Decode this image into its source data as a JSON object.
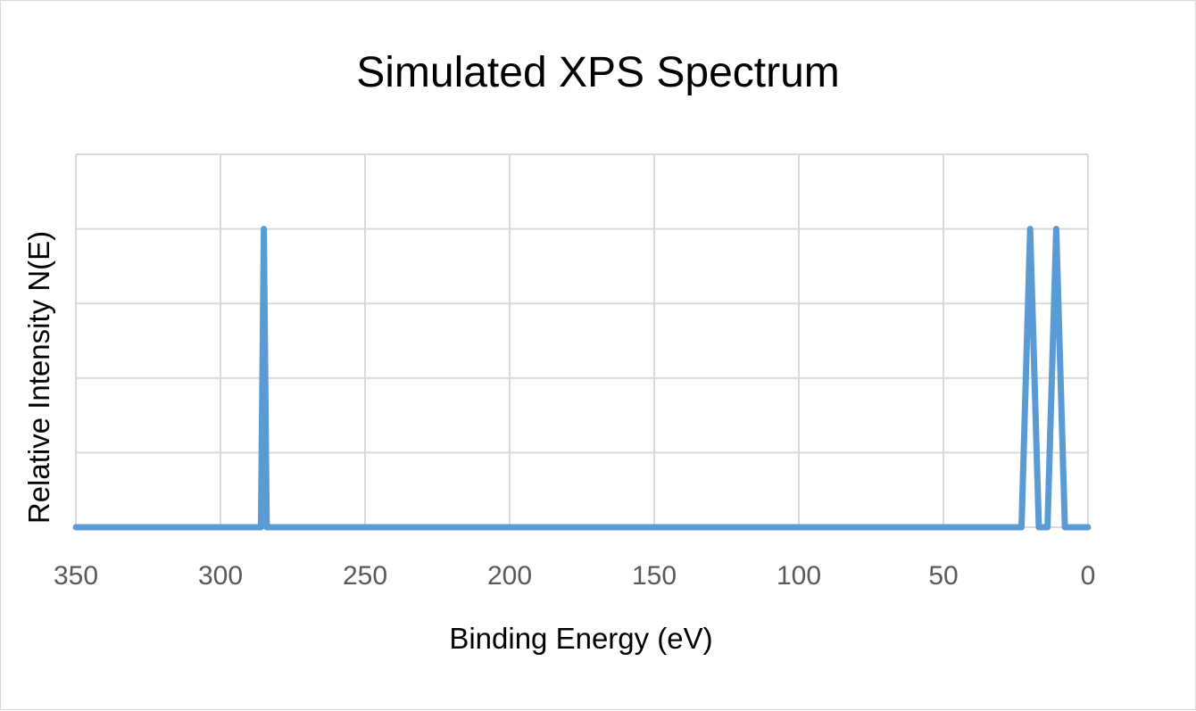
{
  "chart_data": {
    "type": "line",
    "title": "Simulated XPS Spectrum",
    "xlabel": "Binding Energy (eV)",
    "ylabel": "Relative Intensity N(E)",
    "xlim": [
      350,
      0
    ],
    "x_reversed": true,
    "x_ticks": [
      350,
      300,
      250,
      200,
      150,
      100,
      50,
      0
    ],
    "ylim": [
      0,
      1.2
    ],
    "y_gridlines": [
      0,
      0.25,
      0.5,
      0.75,
      1.0,
      1.25
    ],
    "y_tick_labels_visible": false,
    "grid": true,
    "legend": "none",
    "color": "#5b9bd5",
    "series": [
      {
        "x": [
          350,
          286,
          285,
          284,
          283,
          23,
          20,
          17,
          14,
          11,
          8,
          0
        ],
        "y": [
          0,
          0,
          1,
          0,
          0,
          0,
          1,
          0,
          0,
          1,
          0,
          0
        ]
      }
    ]
  }
}
